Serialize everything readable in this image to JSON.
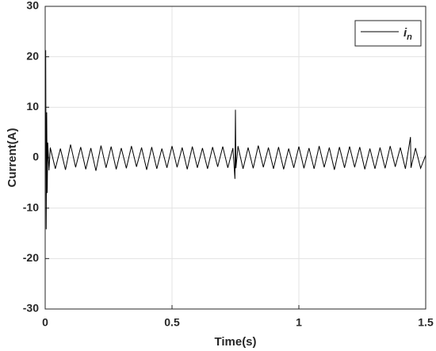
{
  "chart_data": {
    "type": "line",
    "xlabel": "Time(s)",
    "ylabel": "Current(A)",
    "x": [
      0,
      0.002,
      0.004,
      0.006,
      0.008,
      0.01,
      0.015,
      0.02,
      0.04,
      0.06,
      0.08,
      0.1,
      0.12,
      0.14,
      0.16,
      0.18,
      0.2,
      0.22,
      0.24,
      0.26,
      0.28,
      0.3,
      0.32,
      0.34,
      0.36,
      0.38,
      0.4,
      0.42,
      0.44,
      0.46,
      0.48,
      0.5,
      0.52,
      0.54,
      0.56,
      0.58,
      0.6,
      0.62,
      0.64,
      0.66,
      0.68,
      0.7,
      0.72,
      0.74,
      0.748,
      0.75,
      0.752,
      0.76,
      0.78,
      0.8,
      0.82,
      0.84,
      0.86,
      0.88,
      0.9,
      0.92,
      0.94,
      0.96,
      0.98,
      1,
      1.02,
      1.04,
      1.06,
      1.08,
      1.1,
      1.12,
      1.14,
      1.16,
      1.18,
      1.2,
      1.22,
      1.24,
      1.26,
      1.28,
      1.3,
      1.32,
      1.34,
      1.36,
      1.38,
      1.4,
      1.42,
      1.44,
      1.442,
      1.46,
      1.48,
      1.5
    ],
    "series": [
      {
        "name": "in",
        "color": "#000000",
        "values": [
          0,
          21.3,
          -14.2,
          9,
          -7,
          3,
          -2.5,
          2,
          -2.2,
          1.8,
          -2.4,
          2.6,
          -1.9,
          2.1,
          -2.3,
          1.9,
          -2.6,
          2.4,
          -2,
          2.2,
          -2.3,
          1.9,
          -2.1,
          2.3,
          -1.8,
          2,
          -2.4,
          2.1,
          -2.2,
          1.8,
          -2,
          2.3,
          -1.9,
          2,
          -2.3,
          2.2,
          -2,
          1.9,
          -2.2,
          2.1,
          -1.8,
          2.2,
          -2,
          1.9,
          -4.2,
          9.5,
          -2.1,
          2.3,
          -2.2,
          2,
          -2.1,
          2.4,
          -1.9,
          2,
          -2.2,
          2.1,
          -2.3,
          1.8,
          -2,
          2.2,
          -2.1,
          1.9,
          -2.2,
          2.3,
          -1.9,
          2,
          -2.4,
          2.1,
          -2,
          2.2,
          -1.9,
          2.1,
          -2.3,
          1.8,
          -2.2,
          2,
          -2.1,
          2.3,
          -1.8,
          2,
          -2.2,
          4.1,
          -2,
          1.9,
          -2.1,
          0.5
        ]
      }
    ],
    "xlim": [
      0,
      1.5
    ],
    "xticks": [
      0,
      0.5,
      1,
      1.5
    ],
    "ylim": [
      -30,
      30
    ],
    "yticks": [
      -30,
      -20,
      -10,
      0,
      10,
      20,
      30
    ],
    "grid": true,
    "legend": "upper right"
  }
}
